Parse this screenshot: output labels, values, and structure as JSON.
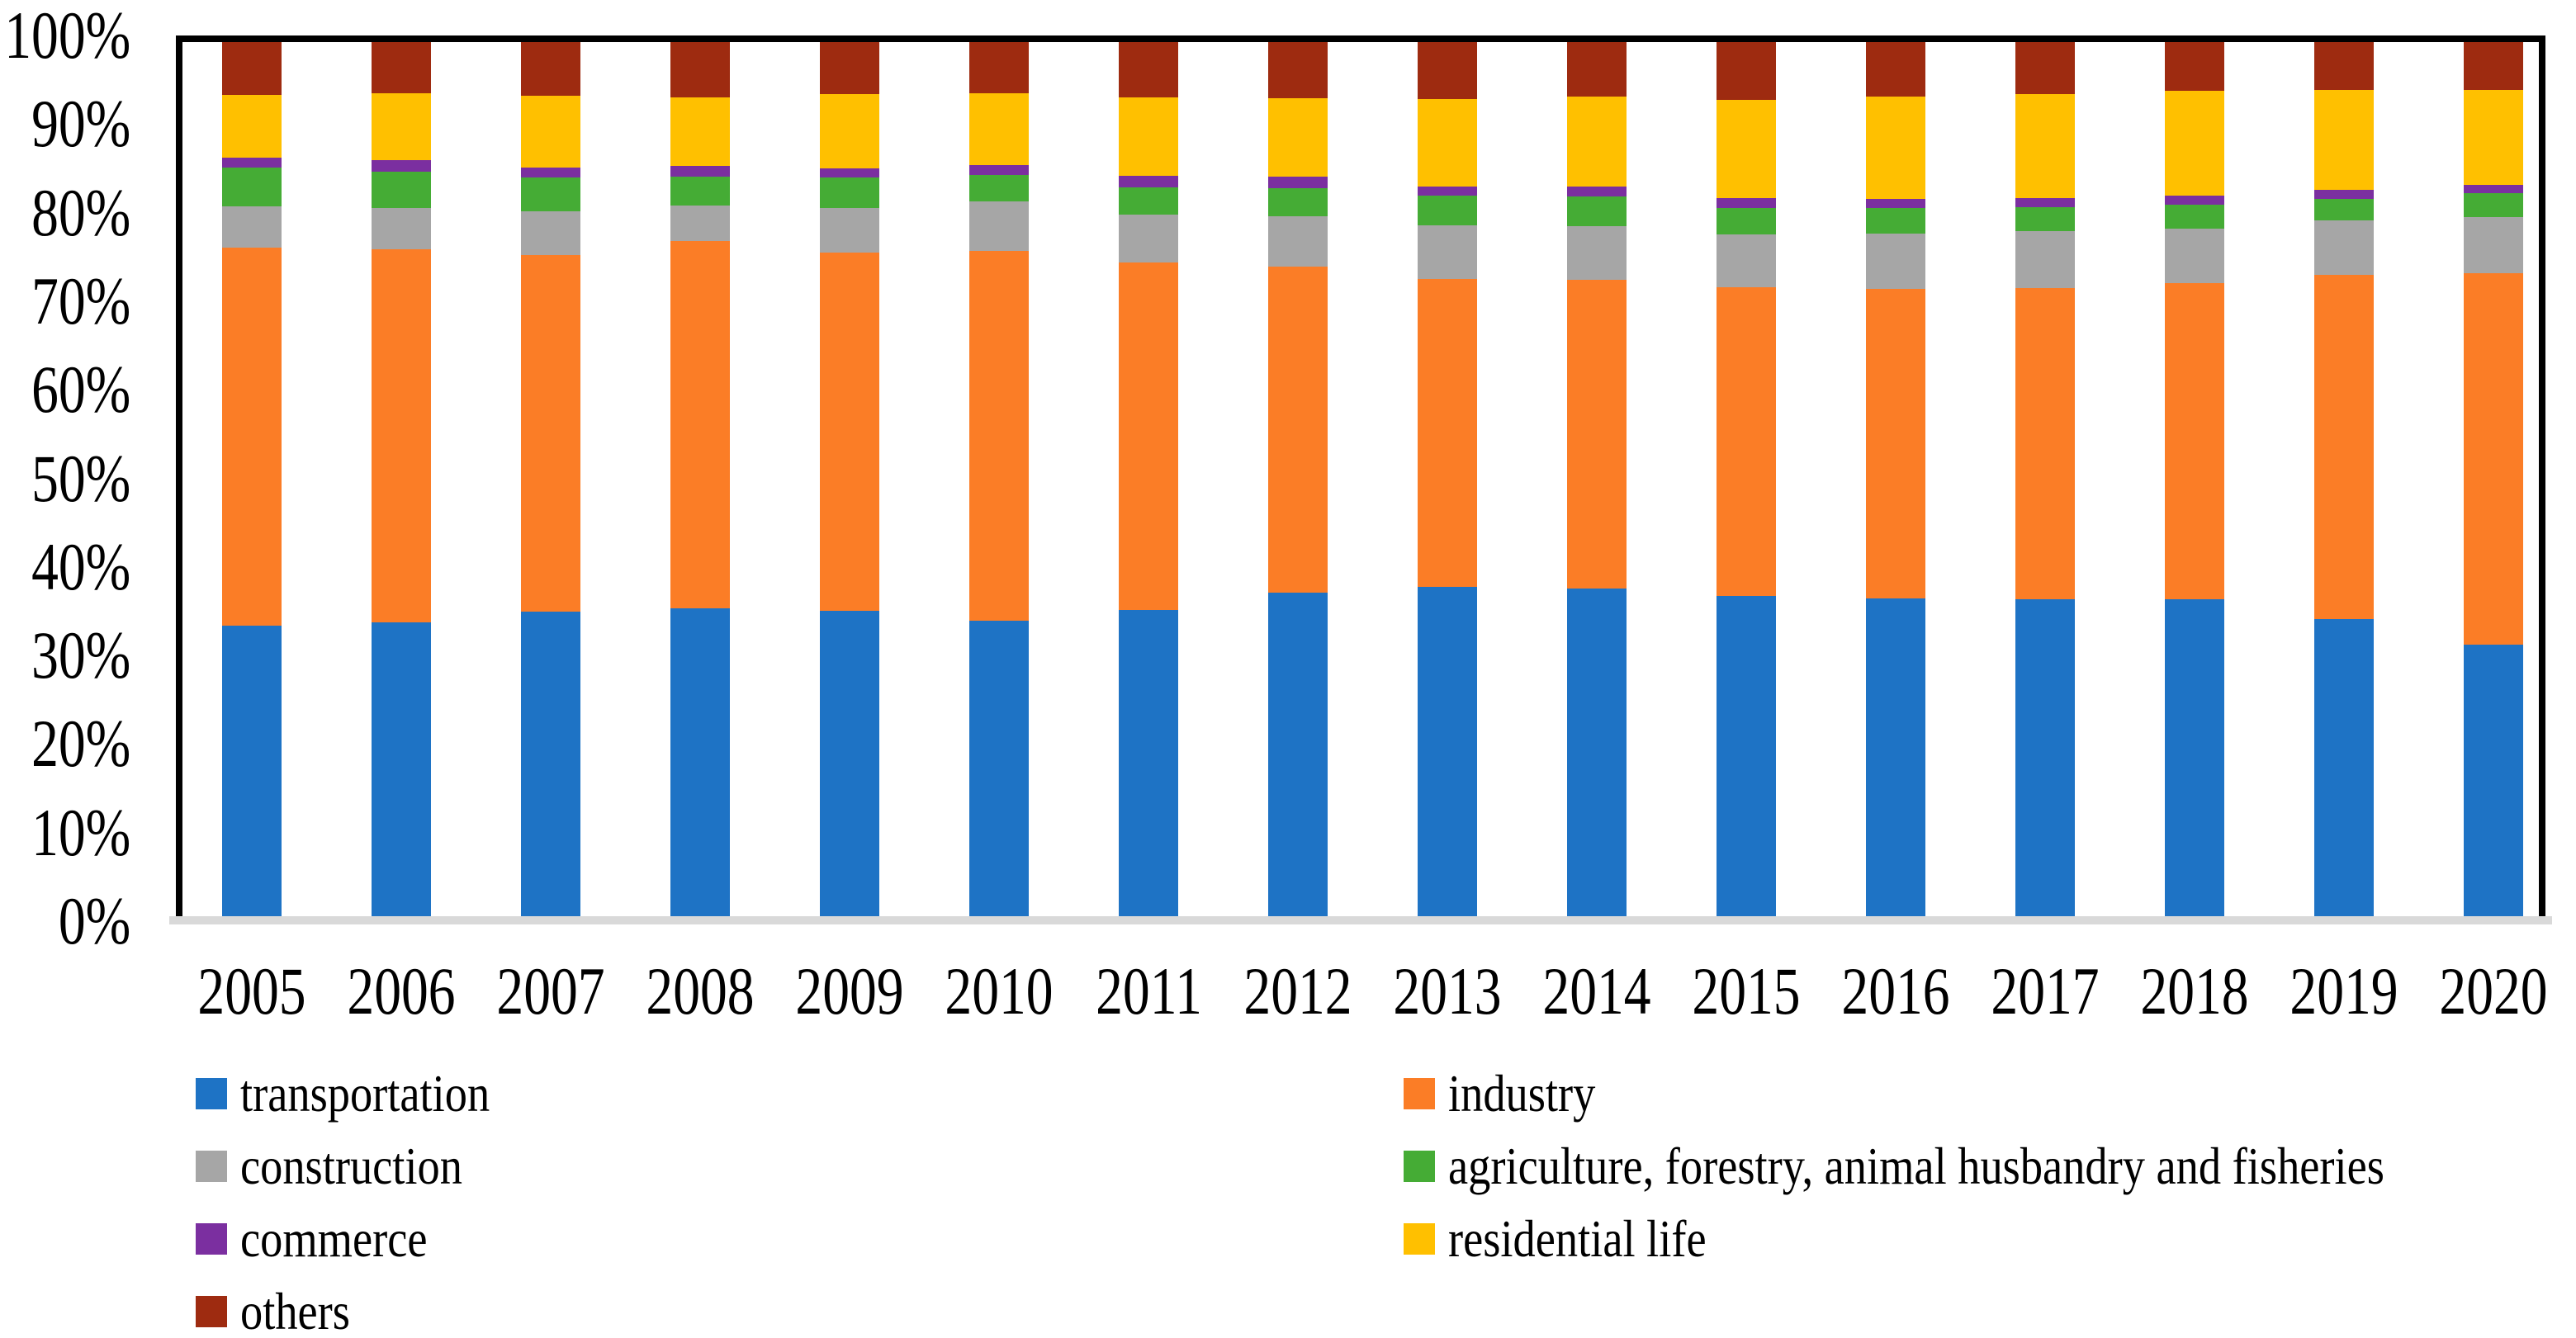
{
  "figure": {
    "kind": "stacked-percentage-column-figure",
    "background": "#FFFFFF",
    "text_color": "#000000",
    "frame_color": "#000000",
    "baseline_color": "#D9D9D9"
  },
  "chart_data": {
    "type": "bar",
    "stacked": true,
    "units": "percent",
    "title": "",
    "xlabel": "",
    "ylabel": "",
    "ylim": [
      0,
      100
    ],
    "gridlines": false,
    "legend_position": "bottom",
    "y_ticks": [
      "0%",
      "10%",
      "20%",
      "30%",
      "40%",
      "50%",
      "60%",
      "70%",
      "80%",
      "90%",
      "100%"
    ],
    "categories": [
      "2005",
      "2006",
      "2007",
      "2008",
      "2009",
      "2010",
      "2011",
      "2012",
      "2013",
      "2014",
      "2015",
      "2016",
      "2017",
      "2018",
      "2019",
      "2020"
    ],
    "series": [
      {
        "name": "transportation",
        "color": "#1E73C5",
        "values": [
          33.6,
          34.0,
          35.2,
          35.6,
          35.3,
          34.2,
          35.4,
          37.4,
          38.0,
          37.8,
          37.0,
          36.7,
          36.6,
          36.6,
          34.4,
          31.5
        ]
      },
      {
        "name": "industry",
        "color": "#FB7D26",
        "values": [
          43.0,
          42.4,
          40.6,
          41.8,
          40.8,
          42.0,
          39.5,
          37.1,
          35.1,
          35.2,
          35.1,
          35.2,
          35.4,
          36.0,
          39.1,
          42.2
        ]
      },
      {
        "name": "construction",
        "color": "#A6A6A6",
        "values": [
          4.7,
          4.7,
          5.0,
          4.0,
          5.0,
          5.7,
          5.5,
          5.7,
          6.1,
          6.1,
          6.0,
          6.3,
          6.5,
          6.2,
          6.2,
          6.4
        ]
      },
      {
        "name": "agriculture, forestry, animal husbandry and fisheries",
        "color": "#45AC35",
        "values": [
          4.4,
          4.2,
          3.8,
          3.3,
          3.5,
          3.0,
          3.1,
          3.2,
          3.3,
          3.3,
          3.0,
          2.9,
          2.7,
          2.7,
          2.5,
          2.7
        ]
      },
      {
        "name": "commerce",
        "color": "#7B2FA0",
        "values": [
          1.2,
          1.3,
          1.1,
          1.2,
          1.0,
          1.1,
          1.3,
          1.3,
          1.1,
          1.2,
          1.2,
          1.1,
          1.1,
          1.0,
          1.0,
          1.0
        ]
      },
      {
        "name": "residential life",
        "color": "#FFC000",
        "values": [
          7.1,
          7.6,
          8.2,
          7.8,
          8.5,
          8.2,
          8.9,
          8.9,
          9.9,
          10.2,
          11.1,
          11.6,
          11.8,
          12.0,
          11.4,
          10.8
        ]
      },
      {
        "name": "others",
        "color": "#9E2B10",
        "values": [
          6.0,
          5.8,
          6.1,
          6.3,
          5.9,
          5.8,
          6.3,
          6.4,
          6.5,
          6.2,
          6.6,
          6.2,
          5.9,
          5.5,
          5.4,
          5.4
        ]
      }
    ]
  },
  "legend": {
    "columns": [
      [
        "transportation",
        "construction",
        "commerce",
        "others"
      ],
      [
        "industry",
        "agriculture, forestry, animal husbandry and fisheries",
        "residential life"
      ]
    ]
  }
}
